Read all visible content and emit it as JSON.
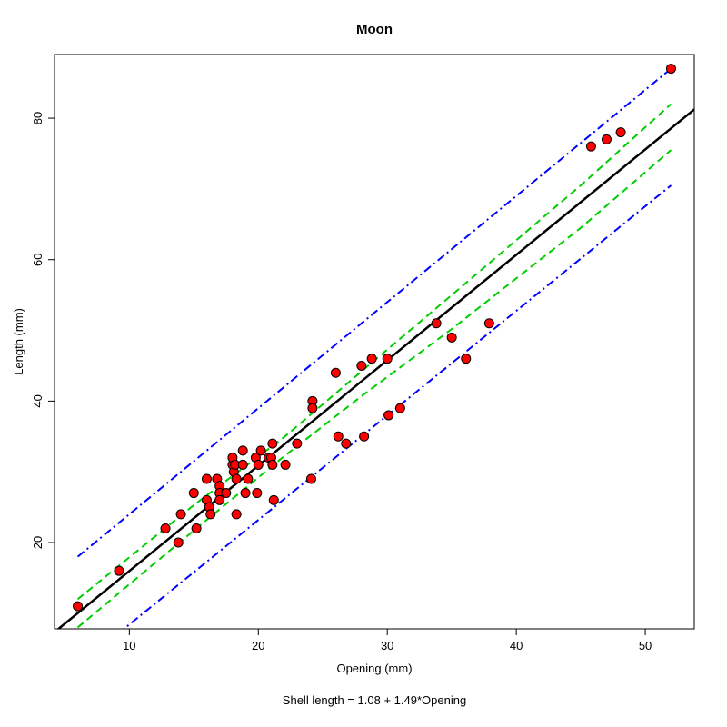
{
  "chart_data": {
    "type": "scatter",
    "title": "Moon",
    "xlabel": "Opening (mm)",
    "ylabel": "Length (mm)",
    "subtitle": "Shell length = 1.08 + 1.49*Opening",
    "xlim": [
      4.2,
      53.8
    ],
    "ylim": [
      7.8,
      89.0
    ],
    "x_ticks": [
      10,
      20,
      30,
      40,
      50
    ],
    "y_ticks": [
      20,
      40,
      60,
      80
    ],
    "grid": false,
    "legend": "none",
    "points": [
      [
        6,
        11
      ],
      [
        9.2,
        16
      ],
      [
        12.8,
        22
      ],
      [
        13.8,
        20
      ],
      [
        14,
        24
      ],
      [
        15,
        27
      ],
      [
        15.2,
        22
      ],
      [
        16,
        29
      ],
      [
        16,
        26
      ],
      [
        16.2,
        25
      ],
      [
        16.3,
        24
      ],
      [
        16.8,
        29
      ],
      [
        17,
        28
      ],
      [
        17,
        27
      ],
      [
        17,
        26
      ],
      [
        17.5,
        27
      ],
      [
        18,
        31
      ],
      [
        18,
        32
      ],
      [
        18.1,
        30
      ],
      [
        18.2,
        31
      ],
      [
        18.3,
        29
      ],
      [
        18.3,
        24
      ],
      [
        18.8,
        33
      ],
      [
        18.8,
        31
      ],
      [
        19,
        27
      ],
      [
        19.2,
        29
      ],
      [
        19.8,
        32
      ],
      [
        19.9,
        27
      ],
      [
        20,
        31
      ],
      [
        20.2,
        33
      ],
      [
        20.8,
        32
      ],
      [
        21,
        32
      ],
      [
        21.1,
        31
      ],
      [
        21.1,
        34
      ],
      [
        21.2,
        26
      ],
      [
        22.1,
        31
      ],
      [
        23,
        34
      ],
      [
        24.1,
        29
      ],
      [
        24.2,
        40
      ],
      [
        24.2,
        39
      ],
      [
        26,
        44
      ],
      [
        26.2,
        35
      ],
      [
        26.8,
        34
      ],
      [
        28,
        45
      ],
      [
        28.2,
        35
      ],
      [
        28.8,
        46
      ],
      [
        30,
        46
      ],
      [
        30.1,
        38
      ],
      [
        31,
        39
      ],
      [
        33.8,
        51
      ],
      [
        35,
        49
      ],
      [
        36.1,
        46
      ],
      [
        37.9,
        51
      ],
      [
        45.8,
        76
      ],
      [
        47,
        77
      ],
      [
        48.1,
        78
      ],
      [
        52,
        87
      ]
    ],
    "regression": {
      "intercept": 1.08,
      "slope": 1.49,
      "color": "#000000"
    },
    "confidence_band": {
      "color": "#00cc00",
      "style": "dashed",
      "upper": [
        [
          6,
          12
        ],
        [
          15,
          25.3
        ],
        [
          22,
          34.9
        ],
        [
          28,
          44.2
        ],
        [
          35,
          55
        ],
        [
          45,
          70.5
        ],
        [
          52,
          82
        ]
      ],
      "lower": [
        [
          6,
          8
        ],
        [
          15,
          21.7
        ],
        [
          22,
          32.2
        ],
        [
          28,
          40.7
        ],
        [
          35,
          50.2
        ],
        [
          45,
          64.5
        ],
        [
          52,
          75.5
        ]
      ]
    },
    "prediction_band": {
      "color": "#0000ff",
      "style": "dotdash",
      "upper": [
        [
          6,
          18
        ],
        [
          52,
          87
        ]
      ],
      "lower": [
        [
          6,
          2.5
        ],
        [
          52,
          70.5
        ]
      ]
    },
    "point_fill": "#ff0000",
    "point_edge": "#000000"
  }
}
